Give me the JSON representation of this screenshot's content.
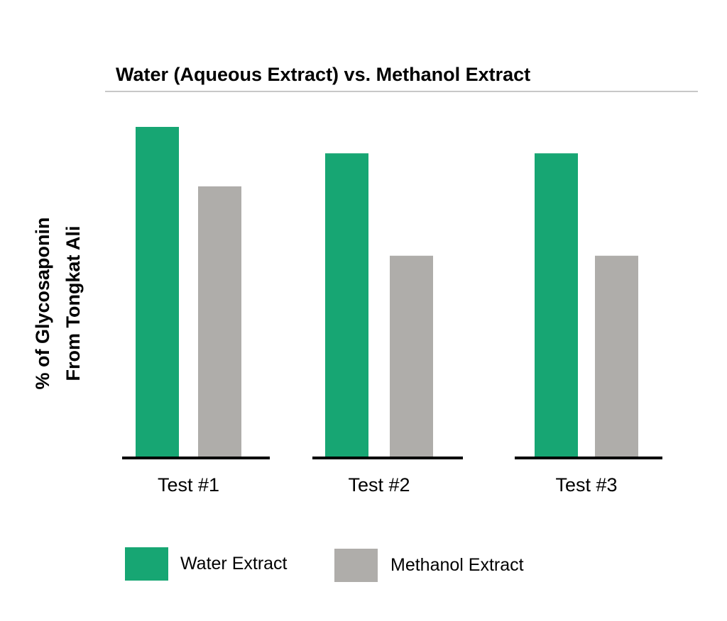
{
  "chart_data": {
    "type": "bar",
    "title": "Water (Aqueous Extract) vs. Methanol Extract",
    "ylabel_lines": [
      "% of Glycosaponin",
      "From Tongkat Ali"
    ],
    "xlabel": "",
    "categories": [
      "Test #1",
      "Test #2",
      "Test #3"
    ],
    "series": [
      {
        "name": "Water Extract",
        "color": "#17a673",
        "values": [
          100,
          92,
          92
        ]
      },
      {
        "name": "Methanol Extract",
        "color": "#afadaa",
        "values": [
          82,
          61,
          61
        ]
      }
    ],
    "ylim": [
      0,
      100
    ],
    "grid": false,
    "legend_position": "bottom-left"
  }
}
